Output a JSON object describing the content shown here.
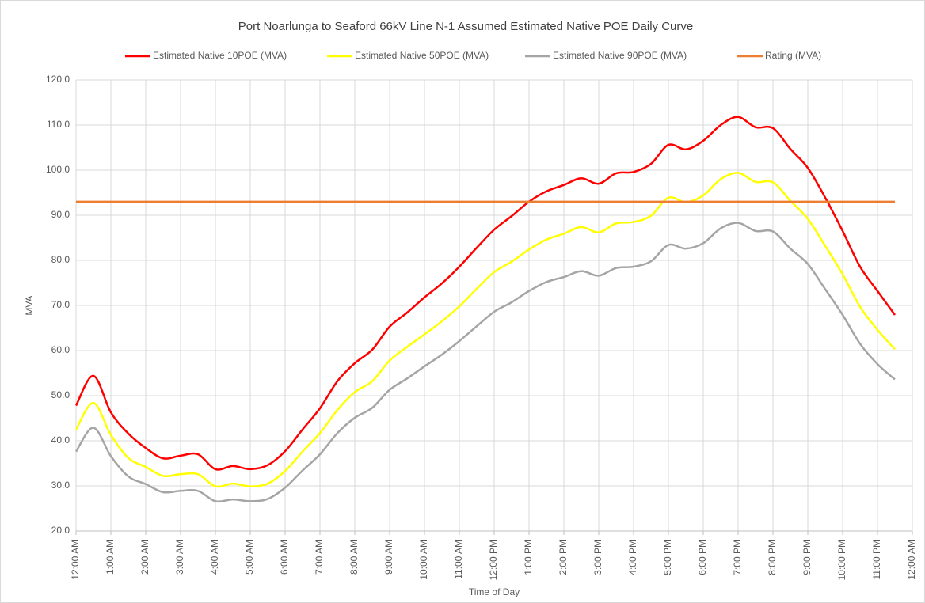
{
  "chart_data": {
    "type": "line",
    "title": "Port Noarlunga to Seaford 66kV Line N-1 Assumed Estimated Native POE Daily Curve",
    "x_label": "Time of Day",
    "y_label": "MVA",
    "categories": [
      "12:00 AM",
      null,
      "1:00 AM",
      null,
      "2:00 AM",
      null,
      "3:00 AM",
      null,
      "4:00 AM",
      null,
      "5:00 AM",
      null,
      "6:00 AM",
      null,
      "7:00 AM",
      null,
      "8:00 AM",
      null,
      "9:00 AM",
      null,
      "10:00 AM",
      null,
      "11:00 AM",
      null,
      "12:00 PM",
      null,
      "1:00 PM",
      null,
      "2:00 PM",
      null,
      "3:00 PM",
      null,
      "4:00 PM",
      null,
      "5:00 PM",
      null,
      "6:00 PM",
      null,
      "7:00 PM",
      null,
      "8:00 PM",
      null,
      "9:00 PM",
      null,
      "10:00 PM",
      null,
      "11:00 PM",
      null,
      "12:00 AM"
    ],
    "series": [
      {
        "name": "Estimated Native 10POE (MVA)",
        "color": "#ff0000",
        "values": [
          47.8,
          54.4,
          46.3,
          41.6,
          38.4,
          36.1,
          36.7,
          37.0,
          33.7,
          34.4,
          33.7,
          34.6,
          37.7,
          42.5,
          47.2,
          53.2,
          57.2,
          60.2,
          65.3,
          68.4,
          71.8,
          74.9,
          78.6,
          82.8,
          86.8,
          89.8,
          93.0,
          95.3,
          96.7,
          98.2,
          97.0,
          99.3,
          99.6,
          101.4,
          105.6,
          104.6,
          106.5,
          110.0,
          111.8,
          109.5,
          109.3,
          104.7,
          100.5,
          93.9,
          86.5,
          78.6,
          73.2,
          67.9,
          null
        ]
      },
      {
        "name": "Estimated Native 50POE (MVA)",
        "color": "#ffff00",
        "values": [
          42.5,
          48.4,
          41.3,
          36.2,
          34.2,
          32.2,
          32.6,
          32.6,
          29.9,
          30.5,
          29.9,
          30.5,
          33.3,
          37.6,
          41.7,
          46.8,
          50.8,
          53.2,
          57.8,
          60.8,
          63.6,
          66.5,
          69.8,
          73.7,
          77.4,
          79.7,
          82.4,
          84.6,
          85.9,
          87.4,
          86.2,
          88.2,
          88.5,
          89.9,
          93.9,
          92.9,
          94.4,
          98.0,
          99.4,
          97.4,
          97.3,
          93.2,
          89.2,
          83.2,
          76.9,
          69.7,
          64.6,
          60.3,
          null
        ]
      },
      {
        "name": "Estimated Native 90POE (MVA)",
        "color": "#a5a5a5",
        "values": [
          37.6,
          42.9,
          36.6,
          32.1,
          30.4,
          28.6,
          28.9,
          28.9,
          26.6,
          27.0,
          26.6,
          27.1,
          29.6,
          33.4,
          37.0,
          41.7,
          45.1,
          47.3,
          51.3,
          53.8,
          56.5,
          59.1,
          62.1,
          65.4,
          68.6,
          70.7,
          73.2,
          75.2,
          76.3,
          77.6,
          76.6,
          78.3,
          78.6,
          79.8,
          83.4,
          82.6,
          83.8,
          87.1,
          88.3,
          86.5,
          86.4,
          82.6,
          79.2,
          73.6,
          67.9,
          61.5,
          57.0,
          53.6,
          null
        ]
      },
      {
        "name": "Rating (MVA)",
        "color": "#ed7d31",
        "values": [
          93,
          93,
          93,
          93,
          93,
          93,
          93,
          93,
          93,
          93,
          93,
          93,
          93,
          93,
          93,
          93,
          93,
          93,
          93,
          93,
          93,
          93,
          93,
          93,
          93,
          93,
          93,
          93,
          93,
          93,
          93,
          93,
          93,
          93,
          93,
          93,
          93,
          93,
          93,
          93,
          93,
          93,
          93,
          93,
          93,
          93,
          93,
          93,
          null
        ]
      }
    ],
    "ylim": [
      20,
      120
    ],
    "yticks": [
      {
        "value": 20,
        "label": "20.0"
      },
      {
        "value": 30,
        "label": "30.0"
      },
      {
        "value": 40,
        "label": "40.0"
      },
      {
        "value": 50,
        "label": "50.0"
      },
      {
        "value": 60,
        "label": "60.0"
      },
      {
        "value": 70,
        "label": "70.0"
      },
      {
        "value": 80,
        "label": "80.0"
      },
      {
        "value": 90,
        "label": "90.0"
      },
      {
        "value": 100,
        "label": "100.0"
      },
      {
        "value": 110,
        "label": "110.0"
      },
      {
        "value": 120,
        "label": "120.0"
      }
    ],
    "grid": true,
    "smooth": true,
    "legend": "top"
  }
}
